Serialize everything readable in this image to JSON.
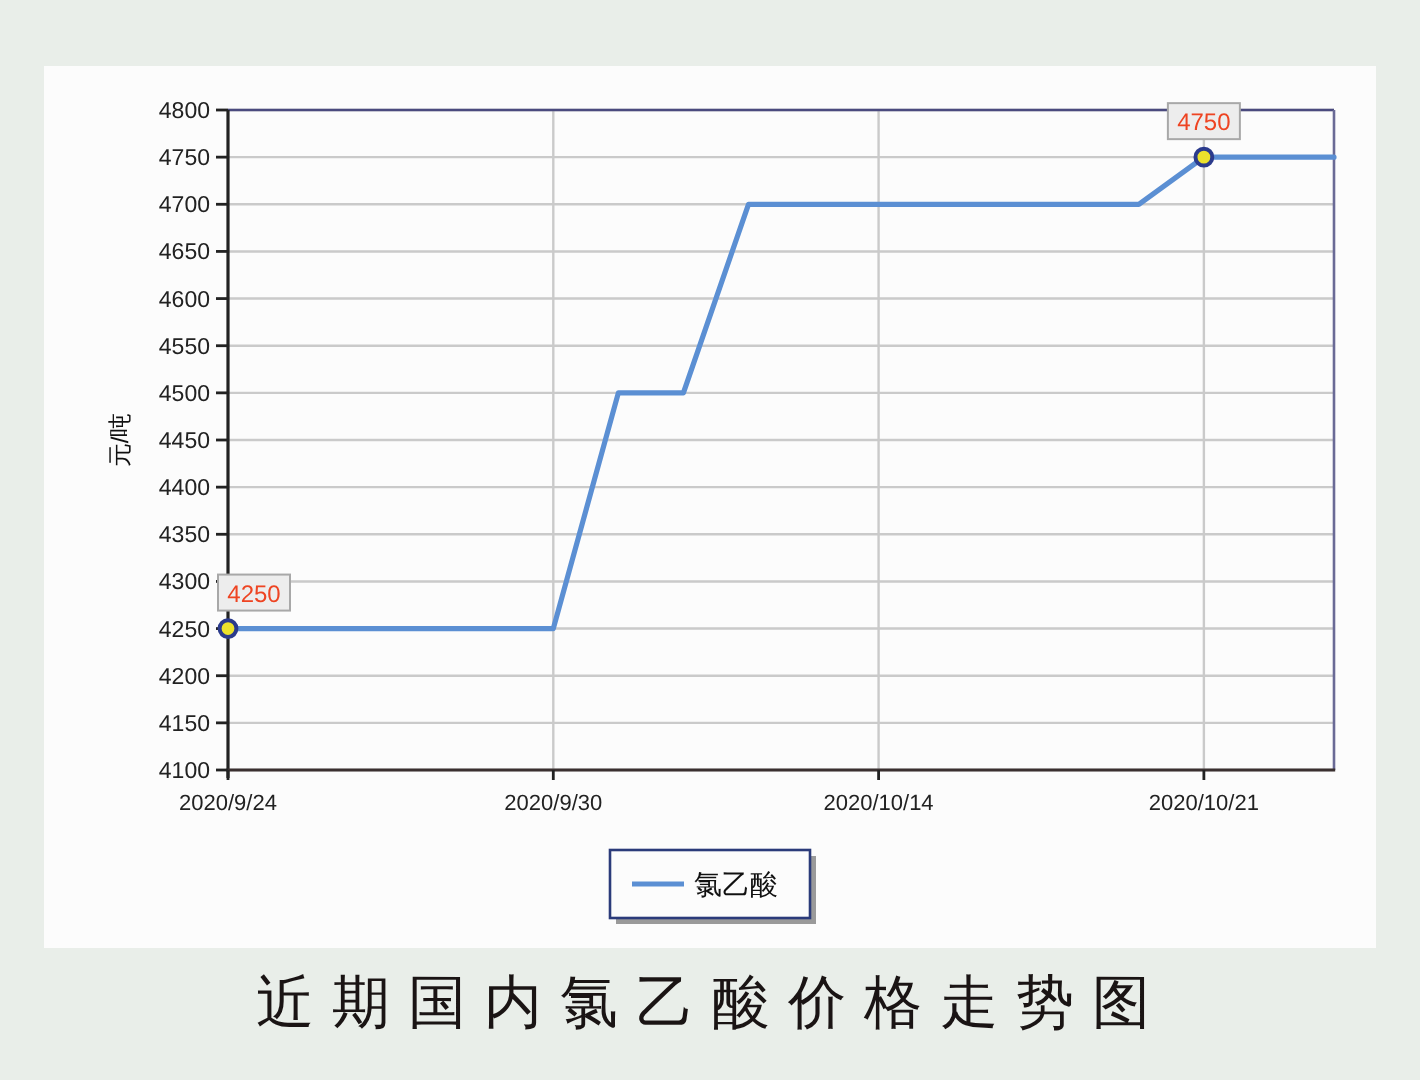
{
  "chart_data": {
    "type": "line",
    "title": "近期国内氯乙酸价格走势图",
    "ylabel": "元/吨",
    "categories": [
      "2020/9/24",
      null,
      null,
      null,
      null,
      "2020/9/30",
      null,
      null,
      null,
      null,
      "2020/10/14",
      null,
      null,
      null,
      null,
      "2020/10/21",
      null,
      null
    ],
    "series": [
      {
        "name": "氯乙酸",
        "color": "#5b8fd3",
        "values": [
          4250,
          4250,
          4250,
          4250,
          4250,
          4250,
          4500,
          4500,
          4700,
          4700,
          4700,
          4700,
          4700,
          4700,
          4700,
          4750,
          4750,
          4750
        ]
      },
      {
        "type": "scatter",
        "x": [
          "2020/9/24",
          "2020/10/21"
        ],
        "values": [
          4250,
          4750
        ],
        "color": "#ece22c",
        "marker": "circle",
        "value_labels": [
          "4250",
          "4750"
        ]
      }
    ],
    "ylim": [
      4100,
      4800
    ],
    "yticks": [
      4100,
      4150,
      4200,
      4250,
      4300,
      4350,
      4400,
      4450,
      4500,
      4550,
      4600,
      4650,
      4700,
      4750,
      4800
    ],
    "grid": true,
    "legend": "bottom"
  }
}
